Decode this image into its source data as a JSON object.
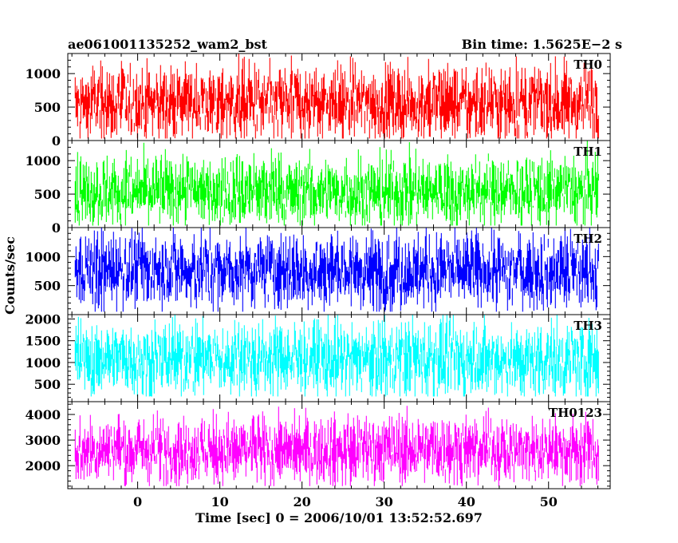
{
  "chart_data": {
    "type": "line",
    "title_left": "ae061001135252_wam2_bst",
    "title_right": "Bin time: 1.5625E−2 s",
    "xlabel": "Time [sec] 0 = 2006/10/01 13:52:52.697",
    "ylabel": "Counts/sec",
    "xlim": [
      -8.5,
      57.5
    ],
    "x_ticks": [
      0,
      10,
      20,
      30,
      40,
      50
    ],
    "x_tick_labels": [
      "0",
      "10",
      "20",
      "30",
      "40",
      "50"
    ],
    "data_x_range": [
      -7.6,
      56.1
    ],
    "bin_time_s": 0.015625,
    "grid": false,
    "panels": [
      {
        "name": "TH0",
        "color": "#ff0000",
        "ylim": [
          0,
          1300
        ],
        "y_ticks": [
          0,
          500,
          1000
        ],
        "y_tick_labels": [
          "0",
          "500",
          "1000"
        ],
        "signal": {
          "mean": 560,
          "spread": 255,
          "min": 30,
          "max": 1300
        }
      },
      {
        "name": "TH1",
        "color": "#00ff00",
        "ylim": [
          0,
          1300
        ],
        "y_ticks": [
          0,
          500,
          1000
        ],
        "y_tick_labels": [
          "0",
          "500",
          "1000"
        ],
        "signal": {
          "mean": 540,
          "spread": 240,
          "min": 30,
          "max": 1300
        }
      },
      {
        "name": "TH2",
        "color": "#0000ff",
        "ylim": [
          0,
          1500
        ],
        "y_ticks": [
          500,
          1000
        ],
        "y_tick_labels": [
          "500",
          "1000"
        ],
        "signal": {
          "mean": 760,
          "spread": 300,
          "min": 50,
          "max": 1500
        }
      },
      {
        "name": "TH3",
        "color": "#00ffff",
        "ylim": [
          100,
          2100
        ],
        "y_ticks": [
          500,
          1000,
          1500,
          2000
        ],
        "y_tick_labels": [
          "500",
          "1000",
          "1500",
          "2000"
        ],
        "signal": {
          "mean": 1080,
          "spread": 390,
          "min": 220,
          "max": 2100
        }
      },
      {
        "name": "TH0123",
        "color": "#ff00ff",
        "ylim": [
          1100,
          4500
        ],
        "y_ticks": [
          2000,
          3000,
          4000
        ],
        "y_tick_labels": [
          "2000",
          "3000",
          "4000"
        ],
        "signal": {
          "mean": 2620,
          "spread": 600,
          "min": 1200,
          "max": 4500
        }
      }
    ]
  }
}
